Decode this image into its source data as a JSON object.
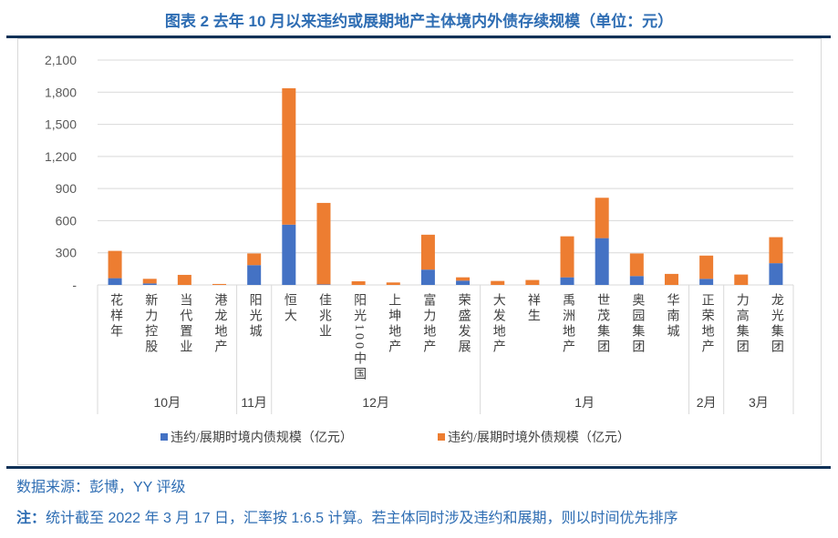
{
  "title": "图表  2 去年 10 月以来违约或展期地产主体境内外债存续规模（单位：元）",
  "chart_data": {
    "type": "bar",
    "stacked": true,
    "title": "",
    "ylim": [
      0,
      2100
    ],
    "yticks": [
      0,
      300,
      600,
      900,
      1200,
      1500,
      1800,
      2100
    ],
    "ytick_labels": [
      "-",
      "300",
      "600",
      "900",
      "1,200",
      "1,500",
      "1,800",
      "2,100"
    ],
    "grid": true,
    "legend_position": "bottom",
    "categories": [
      "花样年",
      "新力控股",
      "当代置业",
      "港龙地产",
      "阳光城",
      "恒大",
      "佳兆业",
      "阳光100中国",
      "上坤地产",
      "富力地产",
      "荣盛发展",
      "大发地产",
      "祥生",
      "禹洲地产",
      "世茂集团",
      "奥园集团",
      "华南城",
      "正荣地产",
      "力高集团",
      "龙光集团"
    ],
    "groups": [
      {
        "label": "10月",
        "count": 4
      },
      {
        "label": "11月",
        "count": 1
      },
      {
        "label": "12月",
        "count": 6
      },
      {
        "label": "1月",
        "count": 6
      },
      {
        "label": "2月",
        "count": 1
      },
      {
        "label": "3月",
        "count": 2
      }
    ],
    "series": [
      {
        "name": "违约/展期时境内债规模（亿元）",
        "color": "#4472c4",
        "values": [
          63,
          14,
          0,
          0,
          185,
          563,
          5,
          0,
          0,
          143,
          40,
          0,
          0,
          71,
          437,
          83,
          0,
          57,
          0,
          203
        ]
      },
      {
        "name": "违约/展期时境外债规模（亿元）",
        "color": "#ed7d31",
        "values": [
          255,
          43,
          94,
          9,
          109,
          1274,
          761,
          34,
          23,
          326,
          31,
          37,
          46,
          383,
          377,
          211,
          103,
          217,
          97,
          243
        ]
      }
    ]
  },
  "footer": {
    "source": "数据来源：彭博，YY 评级",
    "note_label": "注：",
    "note": "统计截至 2022 年 3 月 17 日，汇率按 1:6.5 计算。若主体同时涉及违约和展期，则以时间优先排序"
  }
}
